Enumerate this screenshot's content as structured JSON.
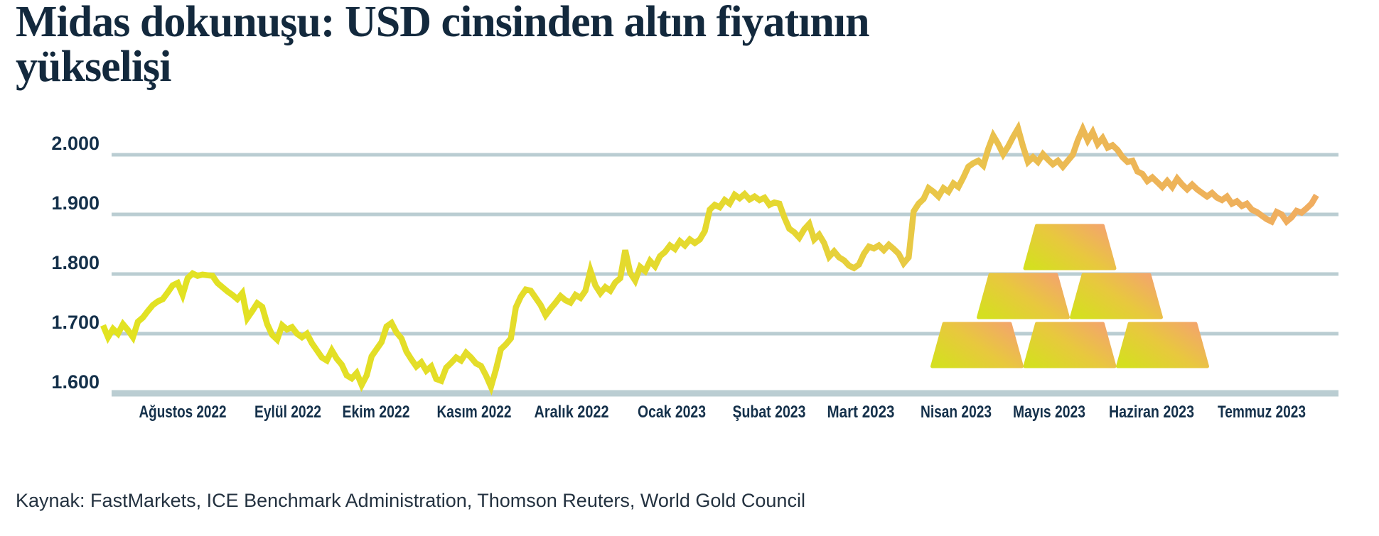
{
  "header": {
    "title": "Midas dokunuşu: USD cinsinden altın fiyatının yükselişi"
  },
  "footer": {
    "source": "Kaynak: FastMarkets, ICE Benchmark Administration, Thomson Reuters, World Gold Council"
  },
  "chart_data": {
    "type": "line",
    "title": "Midas dokunuşu: USD cinsinden altın fiyatının yükselişi",
    "currency": "USD",
    "grid": true,
    "legend": "none",
    "y_axis": {
      "min": 1580,
      "max": 2060,
      "ticks": [
        {
          "value": 2000,
          "label": "2.000"
        },
        {
          "value": 1900,
          "label": "1.900"
        },
        {
          "value": 1800,
          "label": "1.800"
        },
        {
          "value": 1700,
          "label": "1.700"
        },
        {
          "value": 1600,
          "label": "1.600"
        }
      ]
    },
    "x_axis": {
      "tick_labels": [
        "Ağustos 2022",
        "Eylül 2022",
        "Ekim 2022",
        "Kasım 2022",
        "Aralık 2022",
        "Ocak 2023",
        "Şubat 2023",
        "Mart 2023",
        "Nisan 2023",
        "Mayıs 2023",
        "Haziran 2023",
        "Temmuz 2023"
      ]
    },
    "series": [
      {
        "t_start": -0.31,
        "t_end": 12.0,
        "t_unit": "months since 2022-08-01",
        "values": [
          1714,
          1694,
          1708,
          1700,
          1716,
          1706,
          1694,
          1720,
          1727,
          1738,
          1748,
          1754,
          1758,
          1769,
          1781,
          1785,
          1765,
          1793,
          1801,
          1797,
          1799,
          1798,
          1797,
          1785,
          1778,
          1771,
          1765,
          1758,
          1768,
          1726,
          1738,
          1751,
          1745,
          1716,
          1698,
          1690,
          1714,
          1707,
          1711,
          1700,
          1694,
          1700,
          1684,
          1672,
          1660,
          1655,
          1672,
          1658,
          1648,
          1630,
          1625,
          1634,
          1614,
          1630,
          1662,
          1674,
          1686,
          1712,
          1718,
          1702,
          1692,
          1670,
          1657,
          1645,
          1652,
          1638,
          1645,
          1624,
          1621,
          1643,
          1651,
          1660,
          1655,
          1668,
          1660,
          1650,
          1646,
          1630,
          1611,
          1640,
          1674,
          1682,
          1692,
          1744,
          1762,
          1774,
          1772,
          1760,
          1748,
          1731,
          1742,
          1752,
          1763,
          1756,
          1752,
          1765,
          1760,
          1772,
          1806,
          1781,
          1768,
          1778,
          1772,
          1786,
          1793,
          1840,
          1802,
          1789,
          1812,
          1805,
          1822,
          1813,
          1830,
          1837,
          1848,
          1842,
          1855,
          1848,
          1858,
          1852,
          1858,
          1872,
          1908,
          1916,
          1912,
          1924,
          1918,
          1933,
          1927,
          1934,
          1925,
          1930,
          1924,
          1928,
          1916,
          1920,
          1918,
          1895,
          1876,
          1870,
          1861,
          1875,
          1884,
          1858,
          1866,
          1852,
          1829,
          1838,
          1828,
          1823,
          1814,
          1810,
          1816,
          1834,
          1846,
          1843,
          1848,
          1840,
          1849,
          1842,
          1834,
          1818,
          1828,
          1905,
          1918,
          1926,
          1944,
          1938,
          1930,
          1944,
          1938,
          1952,
          1946,
          1962,
          1980,
          1986,
          1990,
          1982,
          2010,
          2032,
          2018,
          2001,
          2014,
          2030,
          2044,
          2014,
          1988,
          1996,
          1988,
          2001,
          1992,
          1984,
          1990,
          1980,
          1990,
          2000,
          2024,
          2043,
          2024,
          2038,
          2018,
          2028,
          2012,
          2016,
          2008,
          1996,
          1988,
          1990,
          1972,
          1968,
          1956,
          1962,
          1954,
          1946,
          1956,
          1946,
          1960,
          1950,
          1942,
          1950,
          1942,
          1936,
          1930,
          1936,
          1928,
          1924,
          1930,
          1918,
          1922,
          1914,
          1918,
          1908,
          1904,
          1898,
          1892,
          1888,
          1904,
          1900,
          1888,
          1895,
          1906,
          1903,
          1910,
          1918,
          1932
        ]
      }
    ],
    "annotations": {
      "gold_bars_pyramid": {
        "rows_bottom_to_top": [
          3,
          2,
          1
        ]
      }
    },
    "colors": {
      "background": "#ffffff",
      "grid": "#bacdd2",
      "title_text": "#13293d",
      "axis_text": "#14304a",
      "source_text": "#243240",
      "line_gradient": [
        {
          "offset": 0.0,
          "color": "#e2e321"
        },
        {
          "offset": 0.55,
          "color": "#e5d830"
        },
        {
          "offset": 0.68,
          "color": "#e9c748"
        },
        {
          "offset": 0.82,
          "color": "#ecb755"
        },
        {
          "offset": 1.0,
          "color": "#f0ad60"
        }
      ],
      "bar_gradient": [
        {
          "offset": 0.0,
          "color": "#d5df20"
        },
        {
          "offset": 0.5,
          "color": "#e8c83e"
        },
        {
          "offset": 1.0,
          "color": "#f3a56c"
        }
      ]
    }
  }
}
